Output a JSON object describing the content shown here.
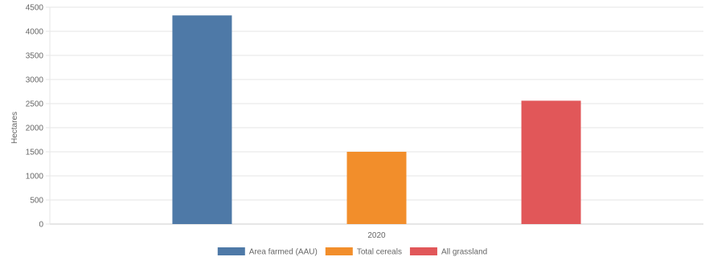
{
  "chart_data": {
    "type": "bar",
    "categories": [
      "2020"
    ],
    "series": [
      {
        "name": "Area farmed (AAU)",
        "values": [
          4330
        ],
        "color": "#4e79a7"
      },
      {
        "name": "Total cereals",
        "values": [
          1500
        ],
        "color": "#f28e2b"
      },
      {
        "name": "All grassland",
        "values": [
          2560
        ],
        "color": "#e15759"
      }
    ],
    "ylabel": "Hectares",
    "xlabel": "",
    "ylim": [
      0,
      4500
    ],
    "yticks": [
      0,
      500,
      1000,
      1500,
      2000,
      2500,
      3000,
      3500,
      4000,
      4500
    ],
    "grid": true,
    "legend_position": "bottom-center"
  }
}
